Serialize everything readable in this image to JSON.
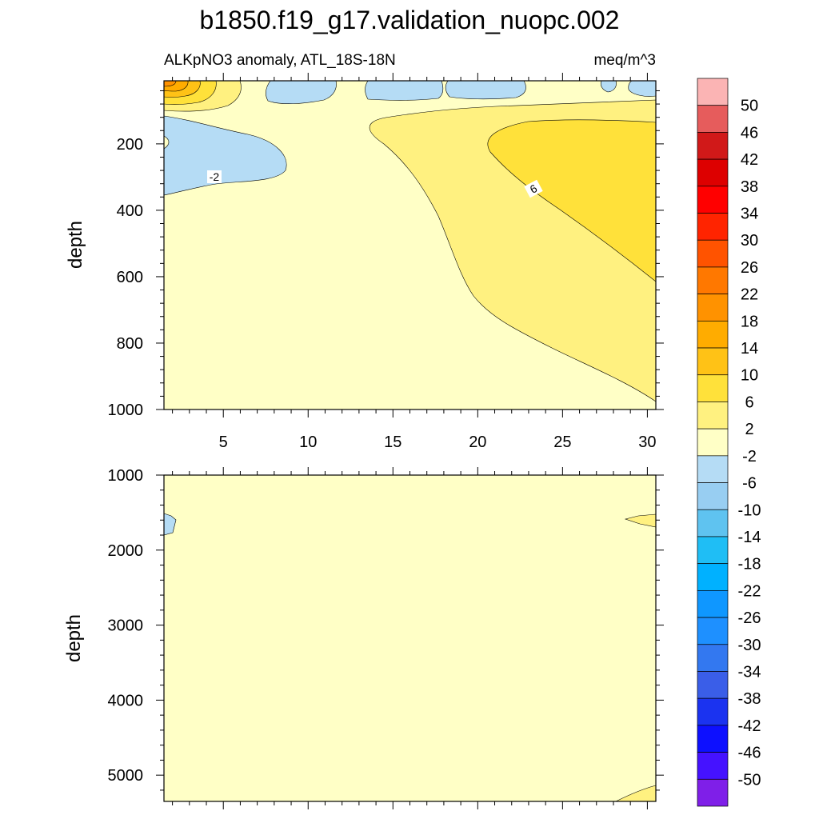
{
  "figure": {
    "title": "b1850.f19_g17.validation_nuopc.002",
    "left_subtitle": "ALKpNO3 anomaly, ATL_18S-18N",
    "right_subtitle": "meq/m^3"
  },
  "chart_data": [
    {
      "type": "contour",
      "panel": "upper",
      "ylabel": "depth",
      "xlim": [
        1.5,
        30.5
      ],
      "ylim": [
        1000,
        10
      ],
      "y_reversed": true,
      "xticks": [
        "5",
        "10",
        "15",
        "20",
        "25",
        "30"
      ],
      "yticks": [
        "200",
        "400",
        "600",
        "800",
        "1000"
      ],
      "contour_labels": [
        "-2",
        "6"
      ],
      "background_level": "-2 to 2",
      "regions": [
        {
          "level": "-6 to -2",
          "note": "shallow lens near x 2-8, depth 110-350"
        },
        {
          "level": "-6 to -2",
          "note": "surface patches near x 7-11, 14-20, 20-27, 29-30"
        },
        {
          "level": "2 to 6",
          "note": "wedge from x 13 to 30, depth 90-1000"
        },
        {
          "level": "6 to 10",
          "note": "core x 20-30, depth 140-610"
        },
        {
          "level": "10 to 22",
          "note": "surface maximum near x 1.5-4, depth 0-80"
        }
      ]
    },
    {
      "type": "contour",
      "panel": "lower",
      "ylabel": "depth",
      "xlim": [
        1.5,
        30.5
      ],
      "ylim": [
        5350,
        1000
      ],
      "y_reversed": true,
      "yticks": [
        "1000",
        "2000",
        "3000",
        "4000",
        "5000"
      ],
      "background_level": "-2 to 2",
      "regions": [
        {
          "level": "-6 to -2",
          "note": "small patch near x 1.5-2.5, depth 1500-1800"
        },
        {
          "level": "2 to 6",
          "note": "small patch near x 29-30.5, depth 1500-1700"
        },
        {
          "level": "2 to 6",
          "note": "bottom corner near x 28-30.5, depth 5150-5350"
        }
      ]
    }
  ],
  "colorbar": {
    "labels": [
      "50",
      "46",
      "42",
      "38",
      "34",
      "30",
      "26",
      "22",
      "18",
      "14",
      "10",
      "6",
      "2",
      "-2",
      "-6",
      "-10",
      "-14",
      "-18",
      "-22",
      "-26",
      "-30",
      "-34",
      "-38",
      "-42",
      "-46",
      "-50"
    ],
    "colors": [
      "#FBB4B4",
      "#E65C5C",
      "#D11919",
      "#DD0000",
      "#FF0000",
      "#FF2400",
      "#FF5300",
      "#FF7800",
      "#FF9200",
      "#FFAC00",
      "#FFC216",
      "#FFE13A",
      "#FFF180",
      "#FFFFC6",
      "#B5DCF5",
      "#98CEF2",
      "#5FC3F0",
      "#1FBEF5",
      "#00B1FF",
      "#0F97FF",
      "#1E90FF",
      "#3378F0",
      "#3A5EE8",
      "#1B33F0",
      "#0D10FF",
      "#4512FF",
      "#7F1FE8"
    ]
  }
}
